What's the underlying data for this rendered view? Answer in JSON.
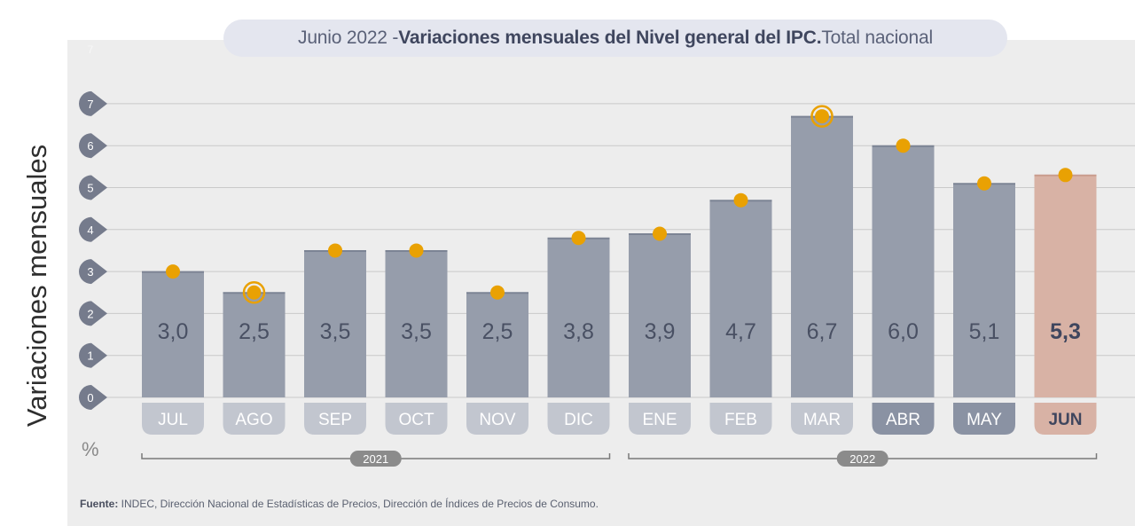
{
  "title": {
    "prefix": "Junio 2022 - ",
    "main": "Variaciones mensuales del Nivel general del IPC.",
    "suffix": " Total nacional"
  },
  "source": {
    "label": "Fuente:",
    "text": " INDEC, Dirección Nacional de Estadísticas de Precios, Dirección de Índices de Precios de Consumo."
  },
  "colors": {
    "bar": "#969dab",
    "bar_highlight": "#d8b2a5",
    "marker": "#e9a103",
    "category_pill": "#c2c6cf",
    "category_pill_active": "#8a92a3",
    "category_pill_highlight": "#d8b2a5",
    "year_pill": "#8b8b8b",
    "tick_circle": "#757b8c"
  },
  "chart_data": {
    "type": "bar",
    "ylabel": "Variaciones mensuales",
    "unit": "%",
    "ylim": [
      0,
      7
    ],
    "yticks": [
      0,
      1,
      2,
      3,
      4,
      5,
      6,
      7
    ],
    "grid": true,
    "categories": [
      "JUL",
      "AGO",
      "SEP",
      "OCT",
      "NOV",
      "DIC",
      "ENE",
      "FEB",
      "MAR",
      "ABR",
      "MAY",
      "JUN"
    ],
    "values": [
      3.0,
      2.5,
      3.5,
      3.5,
      2.5,
      3.8,
      3.9,
      4.7,
      6.7,
      6.0,
      5.1,
      5.3
    ],
    "value_labels": [
      "3,0",
      "2,5",
      "3,5",
      "3,5",
      "2,5",
      "3,8",
      "3,9",
      "4,7",
      "6,7",
      "6,0",
      "5,1",
      "5,3"
    ],
    "ringed_markers": [
      "AGO",
      "MAR"
    ],
    "highlight": "JUN",
    "active_categories": [
      "ABR",
      "MAY"
    ],
    "year_groups": [
      {
        "label": "2021",
        "from": "JUL",
        "to": "DIC"
      },
      {
        "label": "2022",
        "from": "ENE",
        "to": "JUN"
      }
    ]
  }
}
